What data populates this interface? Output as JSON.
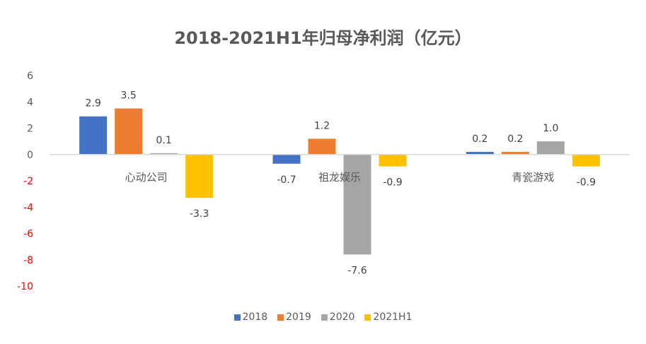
{
  "chart_data": {
    "type": "bar",
    "title": "2018-2021H1年归母净利润（亿元）",
    "xlabel": "",
    "ylabel": "",
    "categories": [
      "心动公司",
      "祖龙娱乐",
      "青瓷游戏"
    ],
    "series": [
      {
        "name": "2018",
        "color": "#4472C4",
        "values": [
          2.9,
          -0.7,
          0.2
        ],
        "labels": [
          "2.9",
          "-0.7",
          "0.2"
        ]
      },
      {
        "name": "2019",
        "color": "#ED7D31",
        "values": [
          3.5,
          1.2,
          0.2
        ],
        "labels": [
          "3.5",
          "1.2",
          "0.2"
        ]
      },
      {
        "name": "2020",
        "color": "#A5A5A5",
        "values": [
          0.1,
          -7.6,
          1.0
        ],
        "labels": [
          "0.1",
          "-7.6",
          "1.0"
        ]
      },
      {
        "name": "2021H1",
        "color": "#FFC000",
        "values": [
          -3.3,
          -0.9,
          -0.9
        ],
        "labels": [
          "-3.3",
          "-0.9",
          "-0.9"
        ]
      }
    ],
    "ylim": [
      -10,
      6
    ],
    "yticks": [
      6,
      4,
      2,
      0,
      -2,
      -4,
      -6,
      -8,
      -10
    ],
    "ytick_labels": [
      "6",
      "4",
      "2",
      "0",
      "-2",
      "-4",
      "-6",
      "-8",
      "-10"
    ],
    "positive_tick_color": "#595959",
    "negative_tick_color": "#FF0000",
    "grid": false,
    "legend_position": "bottom"
  }
}
